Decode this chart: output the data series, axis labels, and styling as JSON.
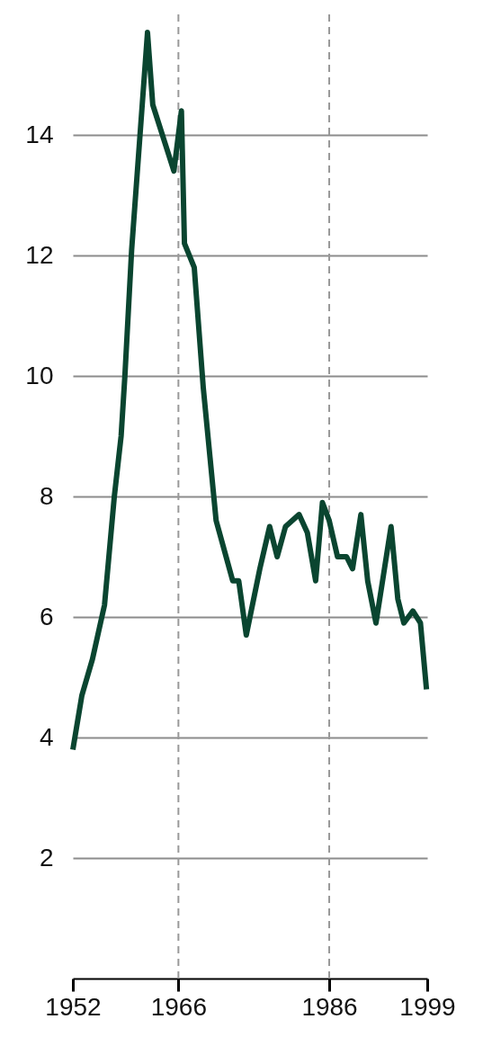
{
  "chart_data": {
    "type": "line",
    "x": [
      1952,
      1953.2,
      1954.6,
      1956.2,
      1957.5,
      1958.4,
      1958.9,
      1959.8,
      1961.9,
      1962.6,
      1965.4,
      1966.4,
      1966.8,
      1968.1,
      1969.3,
      1971.0,
      1973.2,
      1974.0,
      1975.0,
      1976.8,
      1978.1,
      1979.1,
      1980.2,
      1982.0,
      1983.1,
      1984.2,
      1985.1,
      1986.0,
      1987.1,
      1988.3,
      1989.1,
      1990.2,
      1991.1,
      1992.2,
      1993.2,
      1994.2,
      1995.1,
      1995.9,
      1997.1,
      1998.1,
      1998.9
    ],
    "series": [
      {
        "color": "#0a4530",
        "values": [
          3.8,
          4.7,
          5.3,
          6.2,
          8.0,
          9.0,
          10.0,
          12.1,
          15.7,
          14.5,
          13.4,
          14.4,
          12.2,
          11.8,
          9.8,
          7.6,
          6.6,
          6.6,
          5.7,
          6.8,
          7.5,
          7.0,
          7.5,
          7.7,
          7.4,
          6.6,
          7.9,
          7.6,
          7.0,
          7.0,
          6.8,
          7.7,
          6.6,
          5.9,
          6.7,
          7.5,
          6.3,
          5.9,
          6.1,
          5.9,
          4.8
        ]
      }
    ],
    "xlim": [
      1952,
      1999
    ],
    "xticks": [
      1952,
      1966,
      1986,
      1999
    ],
    "ylim": [
      0,
      16
    ],
    "yticks": [
      2,
      4,
      6,
      8,
      10,
      12,
      14
    ],
    "grid": "y",
    "marker": "none",
    "line_style": "solid",
    "ref_lines": [
      {
        "axis": "x",
        "value": 1966,
        "color": "#999999",
        "line_style": "dashed"
      },
      {
        "axis": "x",
        "value": 1986,
        "color": "#999999",
        "line_style": "dashed"
      }
    ]
  }
}
